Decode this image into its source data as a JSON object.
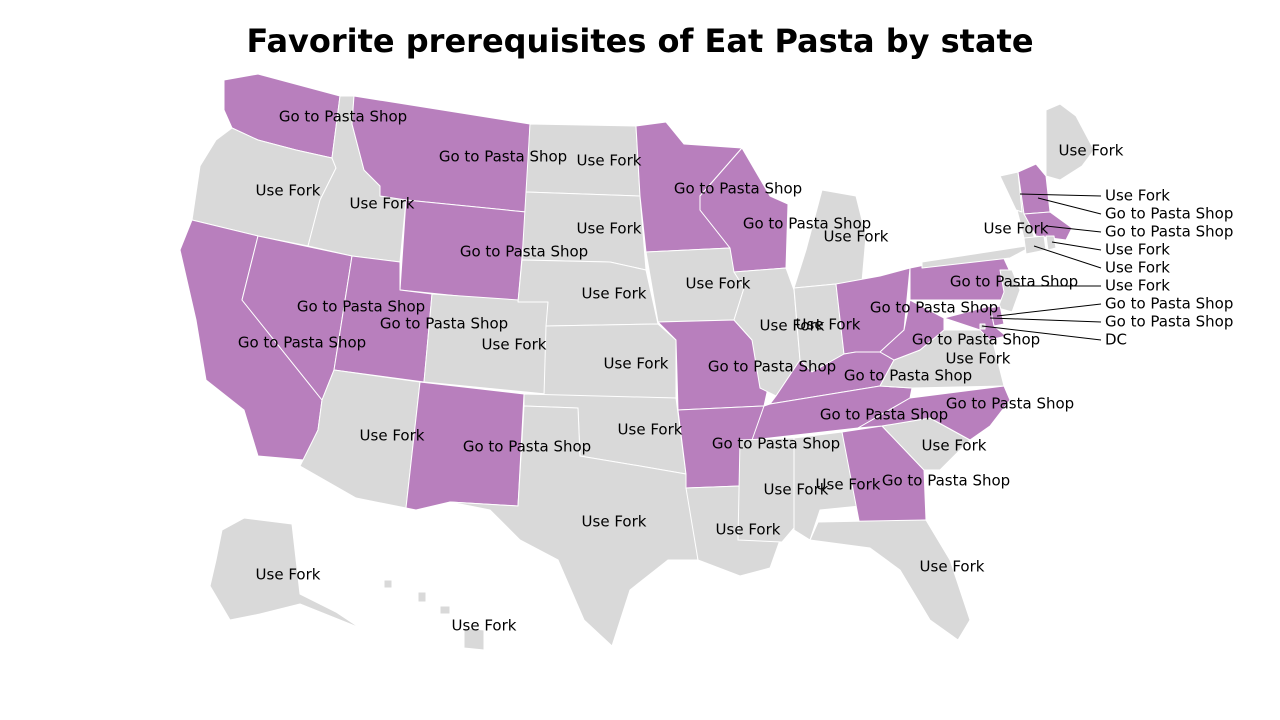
{
  "title": "Favorite prerequisites of Eat Pasta by state",
  "colors": {
    "Go to Pasta Shop": "#b87fbd",
    "Use Fork": "#d9d9d9"
  },
  "states": [
    {
      "code": "WA",
      "value": "Go to Pasta Shop"
    },
    {
      "code": "OR",
      "value": "Use Fork"
    },
    {
      "code": "CA",
      "value": "Go to Pasta Shop"
    },
    {
      "code": "ID",
      "value": "Use Fork"
    },
    {
      "code": "NV",
      "value": "Go to Pasta Shop"
    },
    {
      "code": "MT",
      "value": "Go to Pasta Shop"
    },
    {
      "code": "WY",
      "value": "Go to Pasta Shop"
    },
    {
      "code": "UT",
      "value": "Go to Pasta Shop"
    },
    {
      "code": "AZ",
      "value": "Use Fork"
    },
    {
      "code": "CO",
      "value": "Use Fork"
    },
    {
      "code": "NM",
      "value": "Go to Pasta Shop"
    },
    {
      "code": "ND",
      "value": "Use Fork"
    },
    {
      "code": "SD",
      "value": "Use Fork"
    },
    {
      "code": "NE",
      "value": "Use Fork"
    },
    {
      "code": "KS",
      "value": "Use Fork"
    },
    {
      "code": "OK",
      "value": "Use Fork"
    },
    {
      "code": "TX",
      "value": "Use Fork"
    },
    {
      "code": "MN",
      "value": "Go to Pasta Shop"
    },
    {
      "code": "IA",
      "value": "Use Fork"
    },
    {
      "code": "MO",
      "value": "Go to Pasta Shop"
    },
    {
      "code": "AR",
      "value": "Go to Pasta Shop"
    },
    {
      "code": "LA",
      "value": "Use Fork"
    },
    {
      "code": "WI",
      "value": "Go to Pasta Shop"
    },
    {
      "code": "IL",
      "value": "Use Fork"
    },
    {
      "code": "MI",
      "value": "Use Fork"
    },
    {
      "code": "IN",
      "value": "Use Fork"
    },
    {
      "code": "OH",
      "value": "Go to Pasta Shop"
    },
    {
      "code": "KY",
      "value": "Go to Pasta Shop"
    },
    {
      "code": "TN",
      "value": "Go to Pasta Shop"
    },
    {
      "code": "MS",
      "value": "Use Fork"
    },
    {
      "code": "AL",
      "value": "Use Fork"
    },
    {
      "code": "GA",
      "value": "Go to Pasta Shop"
    },
    {
      "code": "FL",
      "value": "Use Fork"
    },
    {
      "code": "SC",
      "value": "Use Fork"
    },
    {
      "code": "NC",
      "value": "Go to Pasta Shop"
    },
    {
      "code": "VA",
      "value": "Use Fork"
    },
    {
      "code": "WV",
      "value": "Go to Pasta Shop"
    },
    {
      "code": "PA",
      "value": "Go to Pasta Shop"
    },
    {
      "code": "NY",
      "value": "Use Fork"
    },
    {
      "code": "ME",
      "value": "Use Fork"
    },
    {
      "code": "VT",
      "value": "Use Fork"
    },
    {
      "code": "NH",
      "value": "Go to Pasta Shop"
    },
    {
      "code": "MA",
      "value": "Go to Pasta Shop"
    },
    {
      "code": "CT",
      "value": "Use Fork"
    },
    {
      "code": "RI",
      "value": "Use Fork"
    },
    {
      "code": "NJ",
      "value": "Use Fork"
    },
    {
      "code": "DE",
      "value": "Go to Pasta Shop"
    },
    {
      "code": "MD",
      "value": "Go to Pasta Shop"
    },
    {
      "code": "DC",
      "value": "DC"
    },
    {
      "code": "AK",
      "value": "Use Fork"
    },
    {
      "code": "HI",
      "value": "Use Fork"
    }
  ],
  "callouts": [
    {
      "code": "VT",
      "text": "Use Fork"
    },
    {
      "code": "NH",
      "text": "Go to Pasta Shop"
    },
    {
      "code": "MA",
      "text": "Go to Pasta Shop"
    },
    {
      "code": "RI",
      "text": "Use Fork"
    },
    {
      "code": "CT",
      "text": "Use Fork"
    },
    {
      "code": "NJ",
      "text": "Use Fork"
    },
    {
      "code": "DE",
      "text": "Go to Pasta Shop"
    },
    {
      "code": "MD",
      "text": "Go to Pasta Shop"
    },
    {
      "code": "DC",
      "text": "DC"
    }
  ]
}
